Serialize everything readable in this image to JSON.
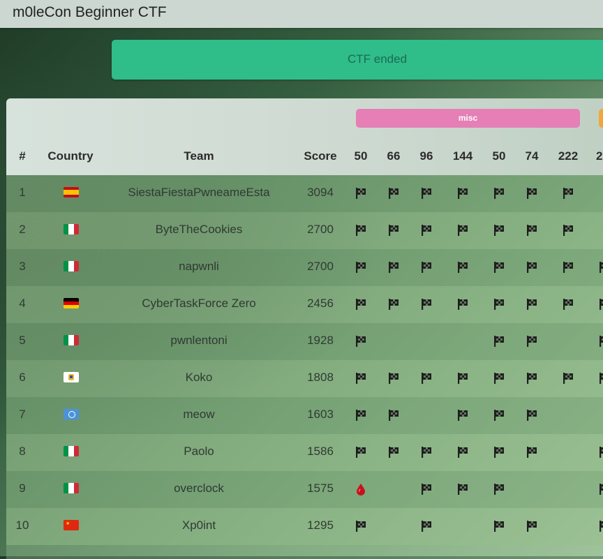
{
  "app": {
    "title": "m0leCon Beginner CTF"
  },
  "banner": {
    "text": "CTF ended"
  },
  "categories": [
    {
      "name": "misc",
      "color": "#e57fb5"
    },
    {
      "name": "",
      "color": "#f0a73a"
    }
  ],
  "table": {
    "headers": {
      "rank": "#",
      "country": "Country",
      "team": "Team",
      "score": "Score"
    },
    "challenge_points": [
      "50",
      "66",
      "96",
      "144",
      "50",
      "74",
      "222",
      "2"
    ],
    "rows": [
      {
        "rank": "1",
        "country": "spain",
        "team": "SiestaFiestaPwneameEsta",
        "score": "3094",
        "solves": [
          "flag",
          "flag",
          "flag",
          "flag",
          "flag",
          "flag",
          "flag",
          ""
        ]
      },
      {
        "rank": "2",
        "country": "italy",
        "team": "ByteTheCookies",
        "score": "2700",
        "solves": [
          "flag",
          "flag",
          "flag",
          "flag",
          "flag",
          "flag",
          "flag",
          ""
        ]
      },
      {
        "rank": "3",
        "country": "italy",
        "team": "napwnli",
        "score": "2700",
        "solves": [
          "flag",
          "flag",
          "flag",
          "flag",
          "flag",
          "flag",
          "flag",
          "flag"
        ]
      },
      {
        "rank": "4",
        "country": "germany",
        "team": "CyberTaskForce Zero",
        "score": "2456",
        "solves": [
          "flag",
          "flag",
          "flag",
          "flag",
          "flag",
          "flag",
          "flag",
          "flag"
        ]
      },
      {
        "rank": "5",
        "country": "italy",
        "team": "pwnlentoni",
        "score": "1928",
        "solves": [
          "flag",
          "",
          "",
          "",
          "flag",
          "flag",
          "",
          "flag"
        ]
      },
      {
        "rank": "6",
        "country": "us-virgin-islands",
        "team": "Koko",
        "score": "1808",
        "solves": [
          "flag",
          "flag",
          "flag",
          "flag",
          "flag",
          "flag",
          "flag",
          "flag"
        ]
      },
      {
        "rank": "7",
        "country": "united-nations",
        "team": "meow",
        "score": "1603",
        "solves": [
          "flag",
          "flag",
          "",
          "flag",
          "flag",
          "flag",
          "",
          ""
        ]
      },
      {
        "rank": "8",
        "country": "italy",
        "team": "Paolo",
        "score": "1586",
        "solves": [
          "flag",
          "flag",
          "flag",
          "flag",
          "flag",
          "flag",
          "",
          "flag"
        ]
      },
      {
        "rank": "9",
        "country": "italy",
        "team": "overclock",
        "score": "1575",
        "solves": [
          "blood",
          "",
          "flag",
          "flag",
          "flag",
          "",
          "",
          "flag"
        ]
      },
      {
        "rank": "10",
        "country": "china",
        "team": "Xp0int",
        "score": "1295",
        "solves": [
          "flag",
          "",
          "flag",
          "",
          "flag",
          "flag",
          "",
          "flag"
        ]
      }
    ]
  }
}
